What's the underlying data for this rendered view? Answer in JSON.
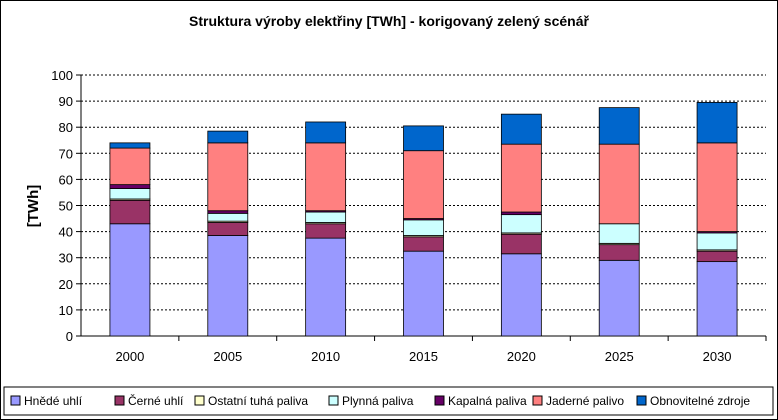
{
  "chart_data": {
    "type": "bar",
    "stacked": true,
    "title": "Struktura výroby elektřiny [TWh] - korigovaný zelený scénář",
    "xlabel": "",
    "ylabel": "[TWh]",
    "ylim": [
      0,
      100
    ],
    "yticks": [
      0,
      10,
      20,
      30,
      40,
      50,
      60,
      70,
      80,
      90,
      100
    ],
    "grid": true,
    "legend_position": "bottom",
    "categories": [
      "2000",
      "2005",
      "2010",
      "2015",
      "2020",
      "2025",
      "2030"
    ],
    "series": [
      {
        "name": "Hnědé uhlí",
        "color": "#9999ff",
        "values": [
          43,
          38.5,
          37.5,
          32.5,
          31.5,
          29,
          28.5
        ]
      },
      {
        "name": "Černé uhlí",
        "color": "#993366",
        "values": [
          9,
          5,
          5.5,
          5.5,
          7.5,
          6,
          4
        ]
      },
      {
        "name": "Ostatní tuhá paliva",
        "color": "#ffffcc",
        "values": [
          0.5,
          0.5,
          0.5,
          0.5,
          0.5,
          0.5,
          0.5
        ]
      },
      {
        "name": "Plynná paliva",
        "color": "#ccffff",
        "values": [
          4,
          3,
          4,
          6,
          7,
          7.5,
          6.5
        ]
      },
      {
        "name": "Kapalná paliva",
        "color": "#660066",
        "values": [
          1.5,
          1,
          0.5,
          0.5,
          1,
          0,
          0.5
        ]
      },
      {
        "name": "Jaderné palivo",
        "color": "#ff8080",
        "values": [
          14,
          26,
          26,
          26,
          26,
          30.5,
          34
        ]
      },
      {
        "name": "Obnovitelné zdroje",
        "color": "#0066cc",
        "values": [
          2,
          4.5,
          8,
          9.5,
          11.5,
          14,
          15.5
        ]
      }
    ]
  }
}
